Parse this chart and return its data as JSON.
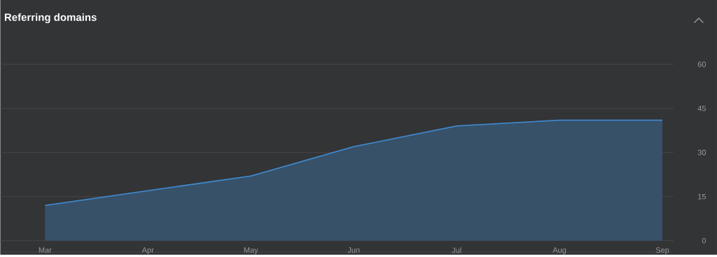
{
  "chart_data": {
    "type": "area",
    "title": "Referring domains",
    "categories": [
      "Mar",
      "Apr",
      "May",
      "Jun",
      "Jul",
      "Aug",
      "Sep"
    ],
    "values": [
      12,
      17,
      22,
      32,
      39,
      41,
      41
    ],
    "color": "#3f86c8",
    "ylim": [
      0,
      60
    ],
    "yticks": [
      0,
      15,
      30,
      45,
      60
    ],
    "grid": "y",
    "marker": "none",
    "line_style": "solid"
  }
}
